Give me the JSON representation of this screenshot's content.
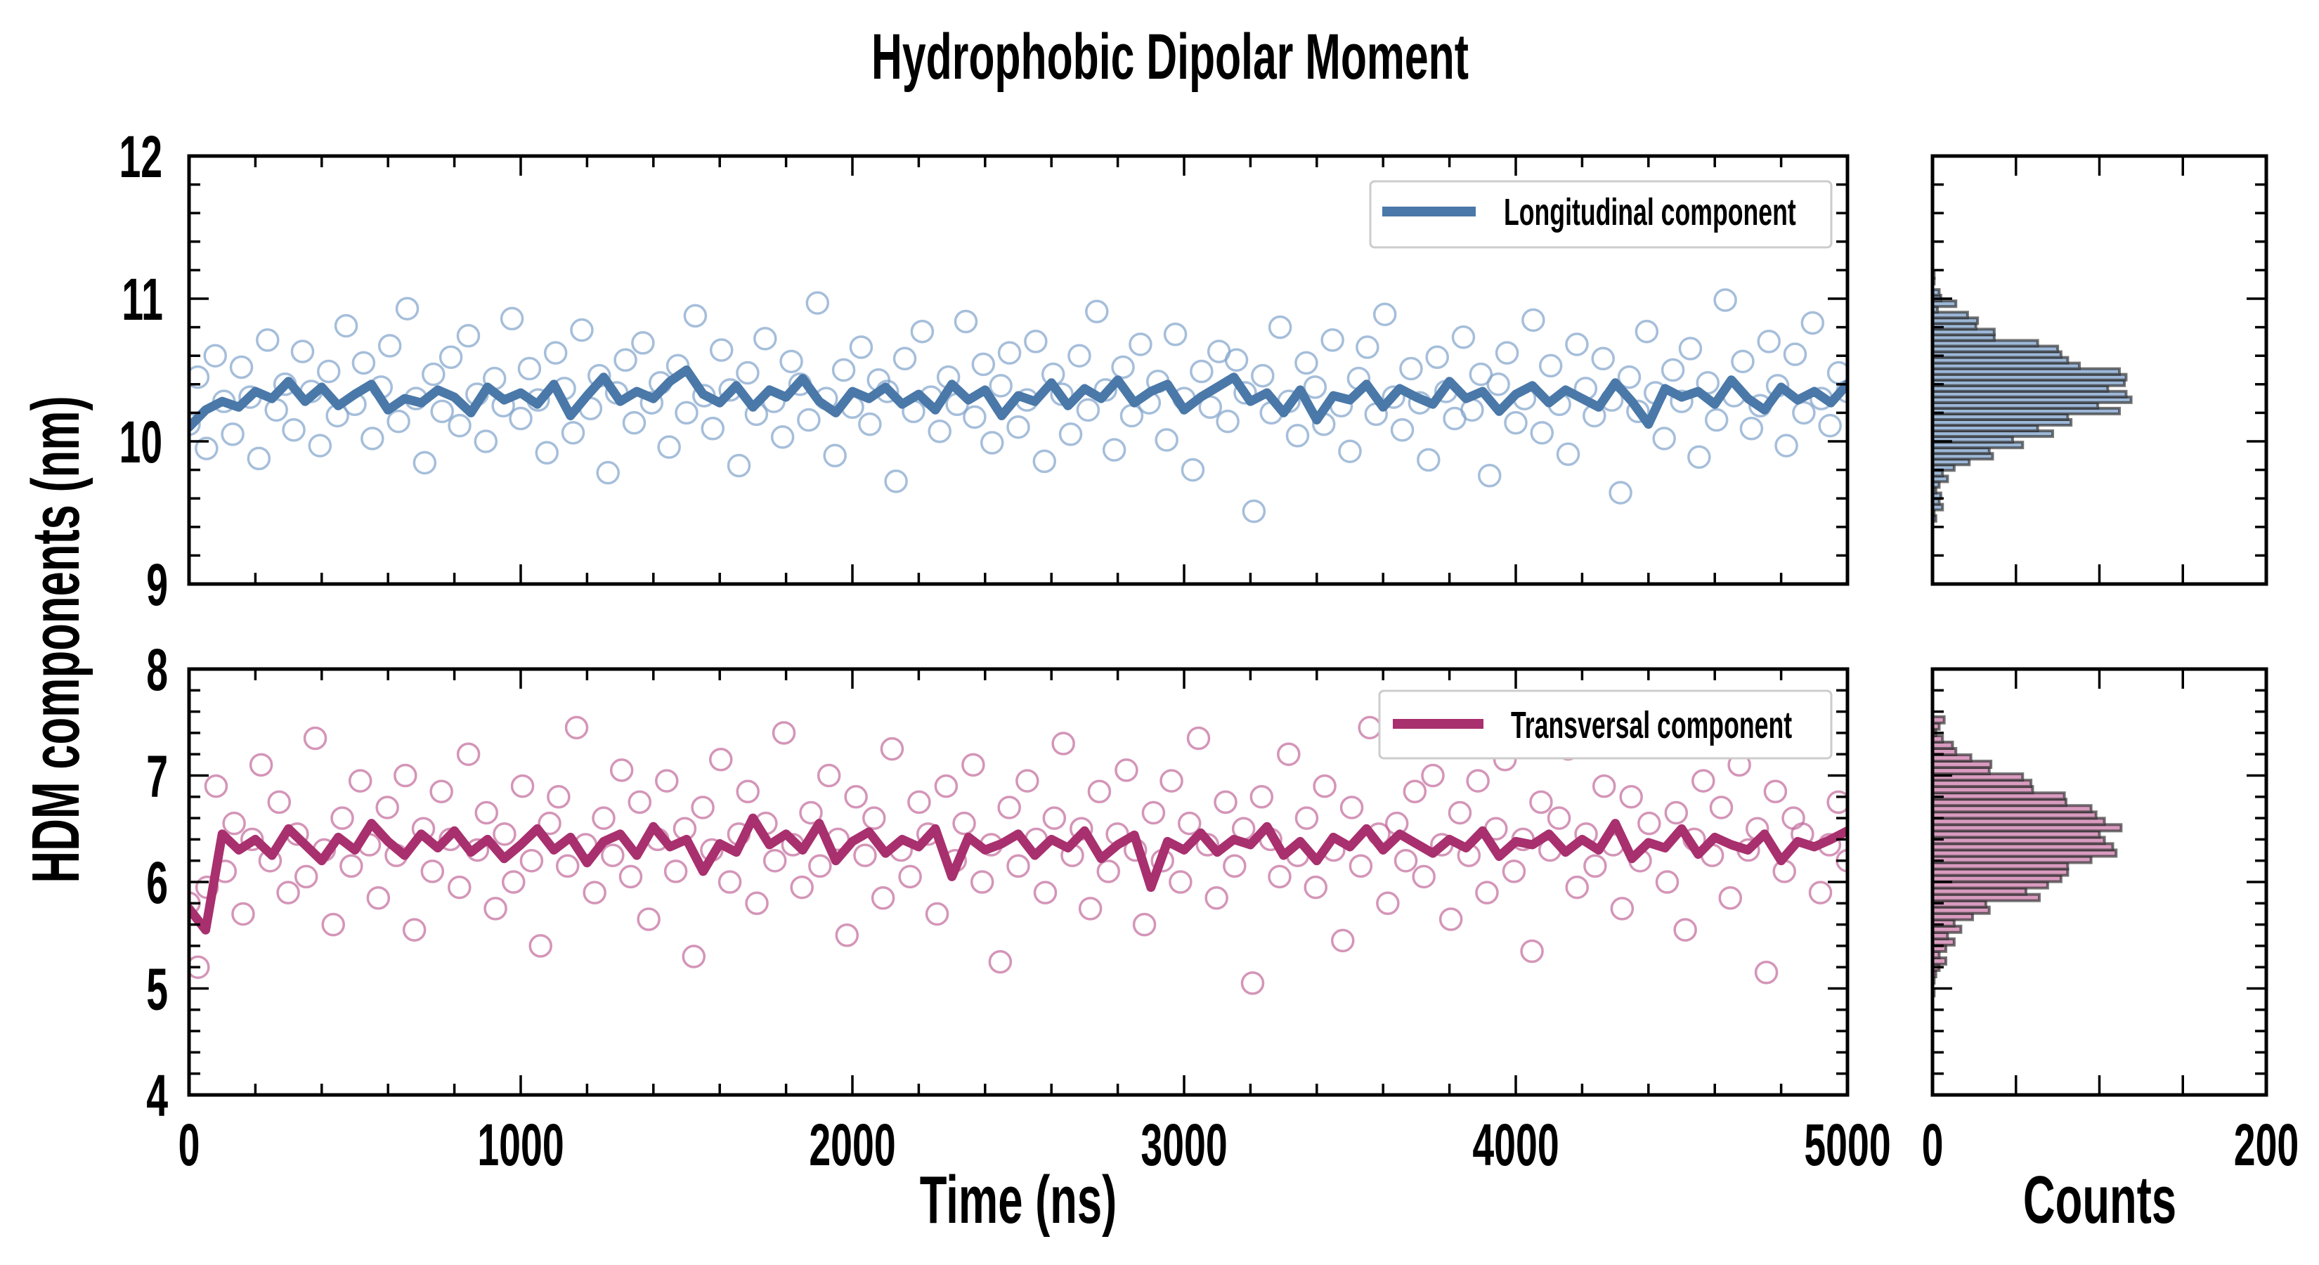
{
  "chart_data": {
    "type": "scatter",
    "title": "Hydrophobic Dipolar Moment",
    "xlabel": "Time (ns)",
    "ylabel": "HDM components (nm)",
    "hist_xlabel": "Counts",
    "xlim": [
      0,
      5000
    ],
    "x_ticks": {
      "major": 1000,
      "minor": 200,
      "labels": [
        "0",
        "1000",
        "2000",
        "3000",
        "4000",
        "5000"
      ]
    },
    "hist_xlim": [
      0,
      200
    ],
    "hist_x_ticks": {
      "major": 50,
      "labels": [
        {
          "value": 0,
          "label": "0"
        },
        {
          "value": 200,
          "label": "200"
        }
      ]
    },
    "grid": false,
    "panels": [
      {
        "name": "Longitudinal component",
        "legend_position": "top-right",
        "ylim": [
          9,
          12
        ],
        "y_ticks": {
          "major": 1,
          "minor": 0.2,
          "labels": [
            "9",
            "10",
            "11",
            "12"
          ]
        },
        "line_color": "#4a78a8",
        "marker_color": "#7fa3cb",
        "hist_fill": "#9db8d8",
        "scatter": {
          "x_range": [
            0,
            5000
          ],
          "y": [
            10.12,
            10.45,
            9.95,
            10.6,
            10.28,
            10.05,
            10.52,
            10.31,
            9.88,
            10.71,
            10.22,
            10.4,
            10.08,
            10.63,
            10.35,
            9.97,
            10.49,
            10.18,
            10.81,
            10.26,
            10.55,
            10.02,
            10.38,
            10.67,
            10.14,
            10.93,
            10.3,
            9.85,
            10.47,
            10.21,
            10.59,
            10.11,
            10.74,
            10.33,
            10.0,
            10.44,
            10.25,
            10.86,
            10.16,
            10.51,
            10.29,
            9.92,
            10.62,
            10.37,
            10.06,
            10.78,
            10.23,
            10.46,
            9.78,
            10.34,
            10.57,
            10.13,
            10.69,
            10.27,
            10.41,
            9.96,
            10.53,
            10.2,
            10.88,
            10.32,
            10.09,
            10.64,
            10.36,
            9.83,
            10.48,
            10.19,
            10.72,
            10.28,
            10.03,
            10.56,
            10.4,
            10.15,
            10.97,
            10.3,
            9.9,
            10.5,
            10.24,
            10.66,
            10.12,
            10.43,
            10.35,
            9.72,
            10.58,
            10.21,
            10.77,
            10.31,
            10.07,
            10.45,
            10.26,
            10.84,
            10.17,
            10.54,
            9.99,
            10.39,
            10.62,
            10.1,
            10.29,
            10.7,
            9.86,
            10.47,
            10.33,
            10.05,
            10.6,
            10.22,
            10.91,
            10.36,
            9.94,
            10.52,
            10.18,
            10.68,
            10.27,
            10.42,
            10.01,
            10.75,
            10.3,
            9.8,
            10.49,
            10.24,
            10.63,
            10.14,
            10.57,
            10.34,
            9.51,
            10.46,
            10.2,
            10.8,
            10.28,
            10.04,
            10.55,
            10.38,
            10.12,
            10.71,
            10.25,
            9.93,
            10.44,
            10.66,
            10.19,
            10.89,
            10.31,
            10.08,
            10.51,
            10.27,
            9.87,
            10.59,
            10.35,
            10.16,
            10.73,
            10.22,
            10.47,
            9.76,
            10.4,
            10.62,
            10.13,
            10.3,
            10.85,
            10.06,
            10.53,
            10.26,
            9.91,
            10.68,
            10.37,
            10.18,
            10.58,
            10.29,
            9.64,
            10.45,
            10.21,
            10.77,
            10.34,
            10.02,
            10.5,
            10.28,
            10.65,
            9.89,
            10.41,
            10.15,
            10.99,
            10.32,
            10.56,
            10.09,
            10.25,
            10.7,
            10.39,
            9.97,
            10.61,
            10.2,
            10.83,
            10.3,
            10.11,
            10.48,
            10.35
          ]
        },
        "running_mean": {
          "x_range": [
            0,
            5000
          ],
          "y": [
            10.1,
            10.22,
            10.28,
            10.24,
            10.35,
            10.3,
            10.42,
            10.28,
            10.38,
            10.25,
            10.33,
            10.4,
            10.22,
            10.3,
            10.27,
            10.36,
            10.31,
            10.2,
            10.38,
            10.29,
            10.34,
            10.26,
            10.4,
            10.18,
            10.32,
            10.45,
            10.28,
            10.35,
            10.3,
            10.42,
            10.5,
            10.33,
            10.27,
            10.39,
            10.24,
            10.36,
            10.31,
            10.44,
            10.28,
            10.2,
            10.35,
            10.3,
            10.38,
            10.26,
            10.33,
            10.22,
            10.4,
            10.29,
            10.36,
            10.18,
            10.32,
            10.28,
            10.41,
            10.25,
            10.37,
            10.3,
            10.43,
            10.27,
            10.35,
            10.4,
            10.22,
            10.31,
            10.38,
            10.45,
            10.28,
            10.34,
            10.2,
            10.36,
            10.15,
            10.32,
            10.29,
            10.4,
            10.24,
            10.37,
            10.31,
            10.26,
            10.42,
            10.3,
            10.35,
            10.21,
            10.33,
            10.39,
            10.27,
            10.36,
            10.3,
            10.24,
            10.41,
            10.28,
            10.12,
            10.37,
            10.31,
            10.35,
            10.26,
            10.43,
            10.3,
            10.22,
            10.38,
            10.29,
            10.35,
            10.27,
            10.4
          ]
        },
        "histogram": {
          "bin_start": 9.44,
          "bin_width": 0.0396,
          "counts": [
            2,
            1,
            6,
            4,
            5,
            2,
            4,
            9,
            6,
            13,
            22,
            36,
            34,
            54,
            48,
            72,
            63,
            83,
            81,
            112,
            99,
            119,
            116,
            105,
            115,
            116,
            112,
            88,
            81,
            77,
            75,
            63,
            37,
            37,
            26,
            27,
            21,
            3,
            14,
            5,
            4,
            0,
            1,
            1
          ]
        }
      },
      {
        "name": "Transversal component",
        "legend_position": "top-right",
        "ylim": [
          4,
          8
        ],
        "y_ticks": {
          "major": 1,
          "minor": 0.2,
          "labels": [
            "4",
            "5",
            "6",
            "7",
            "8"
          ]
        },
        "line_color": "#a8306e",
        "marker_color": "#c2689a",
        "hist_fill": "#d99bbf",
        "scatter": {
          "x_range": [
            0,
            5000
          ],
          "y": [
            5.8,
            5.2,
            5.95,
            6.9,
            6.1,
            6.55,
            5.7,
            6.4,
            7.1,
            6.2,
            6.75,
            5.9,
            6.45,
            6.05,
            7.35,
            6.3,
            5.6,
            6.6,
            6.15,
            6.95,
            6.35,
            5.85,
            6.7,
            6.25,
            7.0,
            5.55,
            6.5,
            6.1,
            6.85,
            6.4,
            5.95,
            7.2,
            6.3,
            6.65,
            5.75,
            6.45,
            6.0,
            6.9,
            6.2,
            5.4,
            6.55,
            6.8,
            6.15,
            7.45,
            6.35,
            5.9,
            6.6,
            6.25,
            7.05,
            6.05,
            6.75,
            5.65,
            6.4,
            6.95,
            6.1,
            6.5,
            5.3,
            6.7,
            6.3,
            7.15,
            6.0,
            6.45,
            6.85,
            5.8,
            6.55,
            6.2,
            7.4,
            6.35,
            5.95,
            6.65,
            6.15,
            7.0,
            6.4,
            5.5,
            6.8,
            6.25,
            6.6,
            5.85,
            7.25,
            6.3,
            6.05,
            6.75,
            6.45,
            5.7,
            6.9,
            6.2,
            6.55,
            7.1,
            6.0,
            6.35,
            5.25,
            6.7,
            6.15,
            6.95,
            6.4,
            5.9,
            6.6,
            7.3,
            6.25,
            6.5,
            5.75,
            6.85,
            6.1,
            6.45,
            7.05,
            6.3,
            5.6,
            6.65,
            6.2,
            6.95,
            6.0,
            6.55,
            7.35,
            6.35,
            5.85,
            6.75,
            6.15,
            6.5,
            5.05,
            6.8,
            6.4,
            6.05,
            7.2,
            6.25,
            6.6,
            5.95,
            6.9,
            6.3,
            5.45,
            6.7,
            6.15,
            7.45,
            6.45,
            5.8,
            6.55,
            6.2,
            6.85,
            6.05,
            7.0,
            6.35,
            5.65,
            6.65,
            6.25,
            6.95,
            5.9,
            6.5,
            7.15,
            6.1,
            6.4,
            5.35,
            6.75,
            6.3,
            6.6,
            7.25,
            5.95,
            6.45,
            6.15,
            6.9,
            6.35,
            5.75,
            6.8,
            6.2,
            6.55,
            7.4,
            6.0,
            6.65,
            5.55,
            6.4,
            6.95,
            6.25,
            6.7,
            5.85,
            7.1,
            6.3,
            6.5,
            5.15,
            6.85,
            6.1,
            6.6,
            6.45,
            7.3,
            5.9,
            6.35,
            6.75,
            6.2
          ]
        },
        "running_mean": {
          "x_range": [
            0,
            5000
          ],
          "y": [
            5.75,
            5.55,
            6.45,
            6.3,
            6.4,
            6.25,
            6.5,
            6.35,
            6.2,
            6.42,
            6.3,
            6.55,
            6.38,
            6.25,
            6.45,
            6.32,
            6.48,
            6.28,
            6.4,
            6.22,
            6.35,
            6.5,
            6.3,
            6.42,
            6.18,
            6.38,
            6.45,
            6.25,
            6.52,
            6.33,
            6.4,
            6.1,
            6.36,
            6.28,
            6.6,
            6.35,
            6.45,
            6.3,
            6.55,
            6.2,
            6.38,
            6.47,
            6.27,
            6.4,
            6.33,
            6.5,
            6.05,
            6.42,
            6.3,
            6.36,
            6.45,
            6.25,
            6.4,
            6.32,
            6.48,
            6.22,
            6.35,
            6.44,
            5.95,
            6.38,
            6.3,
            6.46,
            6.28,
            6.4,
            6.35,
            6.52,
            6.25,
            6.38,
            6.2,
            6.42,
            6.33,
            6.5,
            6.3,
            6.45,
            6.36,
            6.27,
            6.4,
            6.32,
            6.48,
            6.24,
            6.38,
            6.35,
            6.45,
            6.28,
            6.4,
            6.3,
            6.55,
            6.22,
            6.37,
            6.32,
            6.5,
            6.26,
            6.42,
            6.35,
            6.3,
            6.45,
            6.2,
            6.38,
            6.33,
            6.4,
            6.48
          ]
        },
        "histogram": {
          "bin_start": 4.93,
          "bin_width": 0.0596,
          "counts": [
            1,
            0,
            1,
            2,
            4,
            8,
            4,
            8,
            13,
            9,
            17,
            13,
            24,
            34,
            32,
            64,
            56,
            69,
            77,
            81,
            81,
            95,
            110,
            108,
            103,
            100,
            113,
            103,
            98,
            95,
            80,
            79,
            60,
            59,
            54,
            34,
            35,
            23,
            14,
            12,
            6,
            2,
            4,
            7
          ]
        }
      }
    ]
  }
}
